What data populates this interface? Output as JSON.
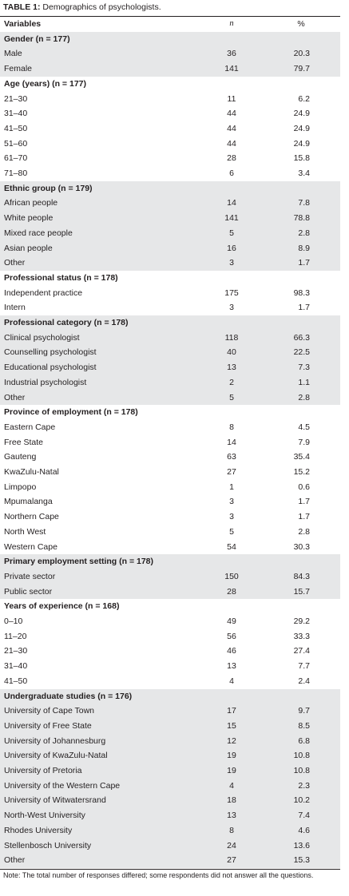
{
  "caption": {
    "label": "TABLE 1:",
    "text": "Demographics of psychologists."
  },
  "table": {
    "header": [
      "Variables",
      "n",
      "%"
    ],
    "sections": [
      {
        "title": "Gender (n = 177)",
        "rows": [
          [
            "Male",
            36,
            20.3
          ],
          [
            "Female",
            141,
            79.7
          ]
        ]
      },
      {
        "title": "Age (years) (n = 177)",
        "rows": [
          [
            "21–30",
            11,
            6.2
          ],
          [
            "31–40",
            44,
            24.9
          ],
          [
            "41–50",
            44,
            24.9
          ],
          [
            "51–60",
            44,
            24.9
          ],
          [
            "61–70",
            28,
            15.8
          ],
          [
            "71–80",
            6,
            3.4
          ]
        ]
      },
      {
        "title": "Ethnic group (n = 179)",
        "rows": [
          [
            "African people",
            14,
            7.8
          ],
          [
            "White people",
            141,
            78.8
          ],
          [
            "Mixed race people",
            5,
            2.8
          ],
          [
            "Asian people",
            16,
            8.9
          ],
          [
            "Other",
            3,
            1.7
          ]
        ]
      },
      {
        "title": "Professional status (n = 178)",
        "rows": [
          [
            "Independent practice",
            175,
            98.3
          ],
          [
            "Intern",
            3,
            1.7
          ]
        ]
      },
      {
        "title": "Professional category (n = 178)",
        "rows": [
          [
            "Clinical psychologist",
            118,
            66.3
          ],
          [
            "Counselling psychologist",
            40,
            22.5
          ],
          [
            "Educational psychologist",
            13,
            7.3
          ],
          [
            "Industrial psychologist",
            2,
            1.1
          ],
          [
            "Other",
            5,
            2.8
          ]
        ]
      },
      {
        "title": "Province of employment (n = 178)",
        "rows": [
          [
            "Eastern Cape",
            8,
            4.5
          ],
          [
            "Free State",
            14,
            7.9
          ],
          [
            "Gauteng",
            63,
            35.4
          ],
          [
            "KwaZulu-Natal",
            27,
            15.2
          ],
          [
            "Limpopo",
            1,
            0.6
          ],
          [
            "Mpumalanga",
            3,
            1.7
          ],
          [
            "Northern Cape",
            3,
            1.7
          ],
          [
            "North West",
            5,
            2.8
          ],
          [
            "Western Cape",
            54,
            30.3
          ]
        ]
      },
      {
        "title": "Primary employment setting (n = 178)",
        "rows": [
          [
            "Private sector",
            150,
            84.3
          ],
          [
            "Public sector",
            28,
            15.7
          ]
        ]
      },
      {
        "title": "Years of experience (n = 168)",
        "rows": [
          [
            "0–10",
            49,
            29.2
          ],
          [
            "11–20",
            56,
            33.3
          ],
          [
            "21–30",
            46,
            27.4
          ],
          [
            "31–40",
            13,
            7.7
          ],
          [
            "41–50",
            4,
            2.4
          ]
        ]
      },
      {
        "title": "Undergraduate studies (n = 176)",
        "rows": [
          [
            "University of Cape Town",
            17,
            9.7
          ],
          [
            "University of Free State",
            15,
            8.5
          ],
          [
            "University of Johannesburg",
            12,
            6.8
          ],
          [
            "University of KwaZulu-Natal",
            19,
            10.8
          ],
          [
            "University of Pretoria",
            19,
            10.8
          ],
          [
            "University of the Western Cape",
            4,
            2.3
          ],
          [
            "University of Witwatersrand",
            18,
            10.2
          ],
          [
            "North-West University",
            13,
            7.4
          ],
          [
            "Rhodes University",
            8,
            4.6
          ],
          [
            "Stellenbosch University",
            24,
            13.6
          ],
          [
            "Other",
            27,
            15.3
          ]
        ]
      }
    ]
  },
  "note": "Note: The total number of responses differed; some respondents did not answer all the questions."
}
